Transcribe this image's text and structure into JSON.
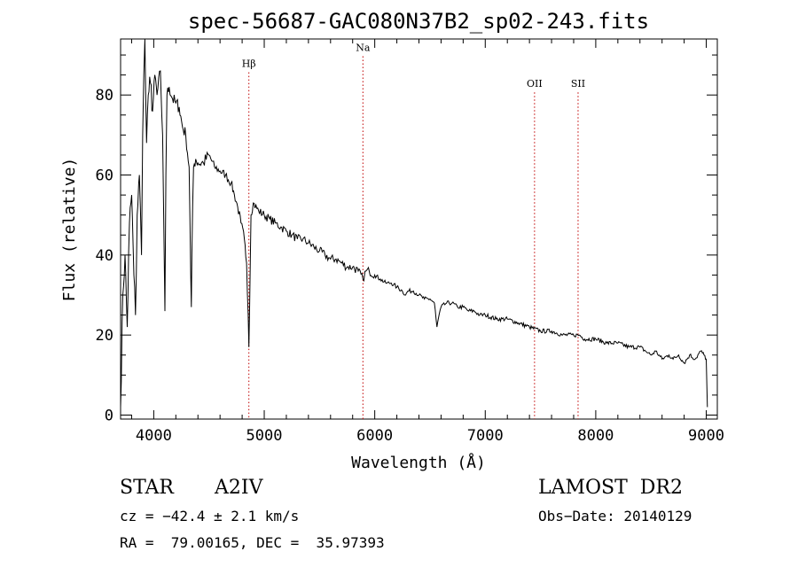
{
  "chart_data": {
    "type": "line",
    "title": "spec-56687-GAC080N37B2_sp02-243.fits",
    "xlabel": "Wavelength (Å)",
    "ylabel": "Flux (relative)",
    "xlim": [
      3700,
      9100
    ],
    "ylim": [
      -1,
      94
    ],
    "xticks": [
      4000,
      5000,
      6000,
      7000,
      8000,
      9000
    ],
    "yticks": [
      0,
      20,
      40,
      60,
      80
    ],
    "grid": false,
    "series": [
      {
        "x": [
          3700,
          3720,
          3740,
          3760,
          3780,
          3800,
          3820,
          3835,
          3850,
          3870,
          3889,
          3900,
          3910,
          3920,
          3935,
          3950,
          3970,
          3990,
          4010,
          4030,
          4060,
          4080,
          4090,
          4101,
          4110,
          4120,
          4140,
          4170,
          4200,
          4230,
          4260,
          4290,
          4320,
          4335,
          4340,
          4345,
          4360,
          4380,
          4400,
          4450,
          4500,
          4550,
          4600,
          4650,
          4700,
          4730,
          4760,
          4790,
          4820,
          4840,
          4855,
          4861,
          4868,
          4880,
          4900,
          4950,
          5000,
          5050,
          5100,
          5150,
          5200,
          5250,
          5300,
          5350,
          5400,
          5450,
          5500,
          5550,
          5600,
          5650,
          5700,
          5750,
          5800,
          5850,
          5893,
          5920,
          5950,
          6000,
          6050,
          6100,
          6150,
          6200,
          6250,
          6280,
          6300,
          6350,
          6400,
          6450,
          6500,
          6540,
          6555,
          6563,
          6575,
          6600,
          6650,
          6700,
          6750,
          6800,
          6850,
          6900,
          6950,
          7000,
          7100,
          7200,
          7300,
          7400,
          7500,
          7600,
          7700,
          7800,
          7850,
          7900,
          8000,
          8100,
          8200,
          8300,
          8400,
          8450,
          8500,
          8542,
          8600,
          8662,
          8700,
          8750,
          8800,
          8850,
          8900,
          8950,
          8980,
          9000,
          9010
        ],
        "y": [
          2,
          30,
          40,
          22,
          48,
          55,
          35,
          25,
          50,
          60,
          40,
          70,
          85,
          95,
          68,
          80,
          83,
          76,
          85,
          80,
          86,
          70,
          50,
          26,
          60,
          80,
          82,
          79,
          78,
          77,
          72,
          70,
          62,
          35,
          27,
          40,
          62,
          64,
          63,
          63,
          65,
          62,
          61,
          60,
          58,
          55,
          52,
          48,
          44,
          38,
          25,
          17,
          28,
          50,
          53,
          51,
          50,
          49,
          48,
          47,
          46,
          45,
          44,
          44,
          43,
          42,
          41,
          40,
          39,
          39,
          38,
          37,
          37,
          36,
          34,
          36,
          36,
          35,
          34,
          33,
          33,
          32,
          31,
          30,
          31,
          31,
          30,
          29,
          29,
          28,
          24,
          22,
          24,
          27,
          28,
          28,
          27,
          27,
          26,
          26,
          25,
          25,
          24,
          24,
          23,
          22,
          21,
          21,
          20,
          20,
          20,
          19,
          19,
          18,
          18,
          17,
          17,
          16,
          15,
          16,
          14,
          15,
          14,
          15,
          13,
          15,
          14,
          16,
          15,
          14,
          2
        ]
      }
    ],
    "annotations": [
      {
        "x": 4861,
        "label": "Hβ",
        "level": 87
      },
      {
        "x": 5893,
        "label": "Na",
        "level": 91
      },
      {
        "x": 7446,
        "label": "OII",
        "level": 82
      },
      {
        "x": 7840,
        "label": "SII",
        "level": 82
      }
    ],
    "colors": {
      "spectrum": "#000000",
      "line_markers": "#c00000",
      "axes": "#000000"
    }
  },
  "info": {
    "object_class": "STAR",
    "subclass": "A2IV",
    "survey": "LAMOST  DR2",
    "cz": "cz = −42.4 ± 2.1 km/s",
    "obs_date": "Obs−Date: 20140129",
    "coords": "RA =  79.00165, DEC =  35.97393"
  }
}
